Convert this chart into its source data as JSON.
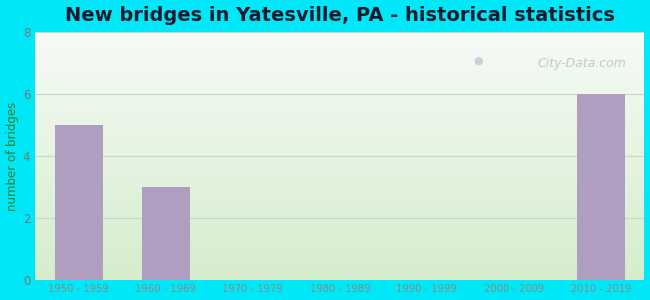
{
  "title": "New bridges in Yatesville, PA - historical statistics",
  "categories": [
    "1950 - 1959",
    "1960 - 1969",
    "1970 - 1979",
    "1980 - 1989",
    "1990 - 1999",
    "2000 - 2009",
    "2010 - 2019"
  ],
  "values": [
    5,
    3,
    0,
    0,
    0,
    0,
    6
  ],
  "bar_color": "#b09ec0",
  "ylabel": "number of bridges",
  "ylim": [
    0,
    8
  ],
  "yticks": [
    0,
    2,
    4,
    6,
    8
  ],
  "bg_outer": "#00e8f8",
  "bg_plot_top": "#f0f5f0",
  "bg_plot_bottom": "#d4edcc",
  "title_fontsize": 14,
  "title_color": "#1a1a2e",
  "ylabel_color": "#2a7a2a",
  "tick_color": "#777777",
  "xtick_color": "#888888",
  "watermark": "City-Data.com",
  "grid_color": "#c8d8c8",
  "bar_edge_color": "none"
}
